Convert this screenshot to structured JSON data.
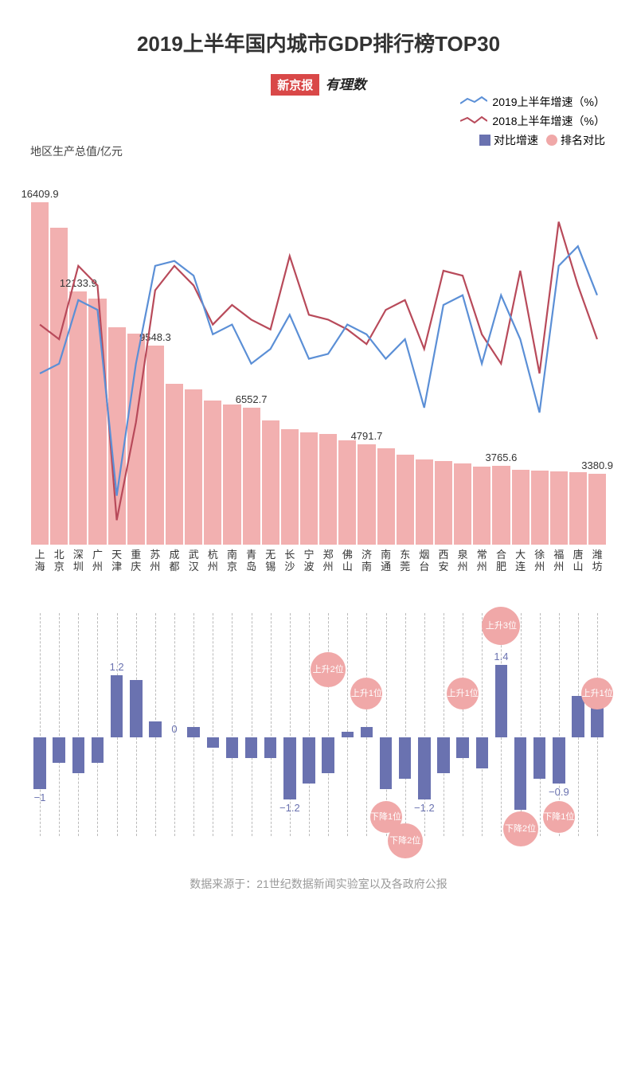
{
  "title": "2019上半年国内城市GDP排行榜TOP30",
  "logo": {
    "box": "新京报",
    "text": "有理数"
  },
  "legend": {
    "line_2019": {
      "label": "2019上半年增速（%）",
      "color": "#5b8fd6"
    },
    "line_2018": {
      "label": "2018上半年增速（%）",
      "color": "#b84a5a"
    },
    "bar_diff": {
      "label": "对比增速",
      "color": "#6a72b0"
    },
    "bubble": {
      "label": "排名对比",
      "color": "#f0a8a8"
    }
  },
  "y_axis_label": "地区生产总值/亿元",
  "main_chart": {
    "type": "bar+line",
    "bar_color": "#f2b0b0",
    "cities": [
      "上海",
      "北京",
      "深圳",
      "广州",
      "天津",
      "重庆",
      "苏州",
      "成都",
      "武汉",
      "杭州",
      "南京",
      "青岛",
      "无锡",
      "长沙",
      "宁波",
      "郑州",
      "佛山",
      "济南",
      "南通",
      "东莞",
      "烟台",
      "西安",
      "泉州",
      "常州",
      "合肥",
      "大连",
      "徐州",
      "福州",
      "唐山",
      "潍坊"
    ],
    "gdp": [
      16409.9,
      15200,
      12133.9,
      11800,
      10400,
      10100,
      9548.3,
      7700,
      7450,
      6900,
      6700,
      6552.7,
      5950,
      5550,
      5400,
      5300,
      5000,
      4791.7,
      4600,
      4300,
      4100,
      4000,
      3900,
      3750,
      3765.6,
      3600,
      3550,
      3500,
      3470,
      3380.9
    ],
    "bar_value_labels": {
      "0": "16409.9",
      "2": "12133.9",
      "6": "9548.3",
      "11": "6552.7",
      "17": "4791.7",
      "24": "3765.6",
      "29": "3380.9"
    },
    "gdp_max": 16409.9,
    "bar_area_height": 430,
    "line_2019": [
      6.0,
      6.2,
      7.5,
      7.3,
      3.5,
      6.2,
      8.2,
      8.3,
      8.0,
      6.8,
      7.0,
      6.2,
      6.5,
      7.2,
      6.3,
      6.4,
      7.0,
      6.8,
      6.3,
      6.7,
      5.3,
      7.4,
      7.6,
      6.2,
      7.6,
      6.7,
      5.2,
      8.2,
      8.6,
      7.6
    ],
    "line_2018": [
      7.0,
      6.7,
      8.2,
      7.8,
      3.0,
      5.0,
      7.7,
      8.2,
      7.8,
      7.0,
      7.4,
      7.1,
      6.9,
      8.4,
      7.2,
      7.1,
      6.9,
      6.6,
      7.3,
      7.5,
      6.5,
      8.1,
      8.0,
      6.8,
      6.2,
      8.1,
      6.0,
      9.1,
      7.8,
      6.7
    ],
    "line_ymin": 2.5,
    "line_ymax": 9.5,
    "line_colors": {
      "2019": "#5b8fd6",
      "2018": "#b84a5a"
    },
    "line_width": 2.2
  },
  "lower_chart": {
    "type": "diverging-bar+bubble",
    "bar_color": "#6a72b0",
    "axis_pct": 55,
    "diff": [
      -1.0,
      -0.5,
      -0.7,
      -0.5,
      1.2,
      1.1,
      0.3,
      0.0,
      0.2,
      -0.2,
      -0.4,
      -0.4,
      -0.4,
      -1.2,
      -0.9,
      -0.7,
      0.1,
      0.2,
      -1.0,
      -0.8,
      -1.2,
      -0.7,
      -0.4,
      -0.6,
      1.4,
      -1.4,
      -0.8,
      -0.9,
      0.8,
      0.9
    ],
    "diff_scale": 65,
    "diff_labels": {
      "0": "−1",
      "4": "1.2",
      "7": "0",
      "13": "−1.2",
      "20": "−1.2",
      "24": "1.4",
      "27": "−0.9"
    },
    "bubbles": [
      {
        "idx": 15,
        "text": "上升2位",
        "size": 44,
        "vpos": -85
      },
      {
        "idx": 17,
        "text": "上升1位",
        "size": 40,
        "vpos": -55
      },
      {
        "idx": 18,
        "text": "下降1位",
        "size": 40,
        "vpos": 100
      },
      {
        "idx": 19,
        "text": "下降2位",
        "size": 44,
        "vpos": 130
      },
      {
        "idx": 22,
        "text": "上升1位",
        "size": 40,
        "vpos": -55
      },
      {
        "idx": 24,
        "text": "上升3位",
        "size": 48,
        "vpos": -140
      },
      {
        "idx": 25,
        "text": "下降2位",
        "size": 44,
        "vpos": 115
      },
      {
        "idx": 27,
        "text": "下降1位",
        "size": 40,
        "vpos": 100
      },
      {
        "idx": 29,
        "text": "上升1位",
        "size": 40,
        "vpos": -55
      }
    ],
    "bubble_color": "#f0a8a8"
  },
  "source": "数据来源于：21世纪数据新闻实验室以及各政府公报"
}
